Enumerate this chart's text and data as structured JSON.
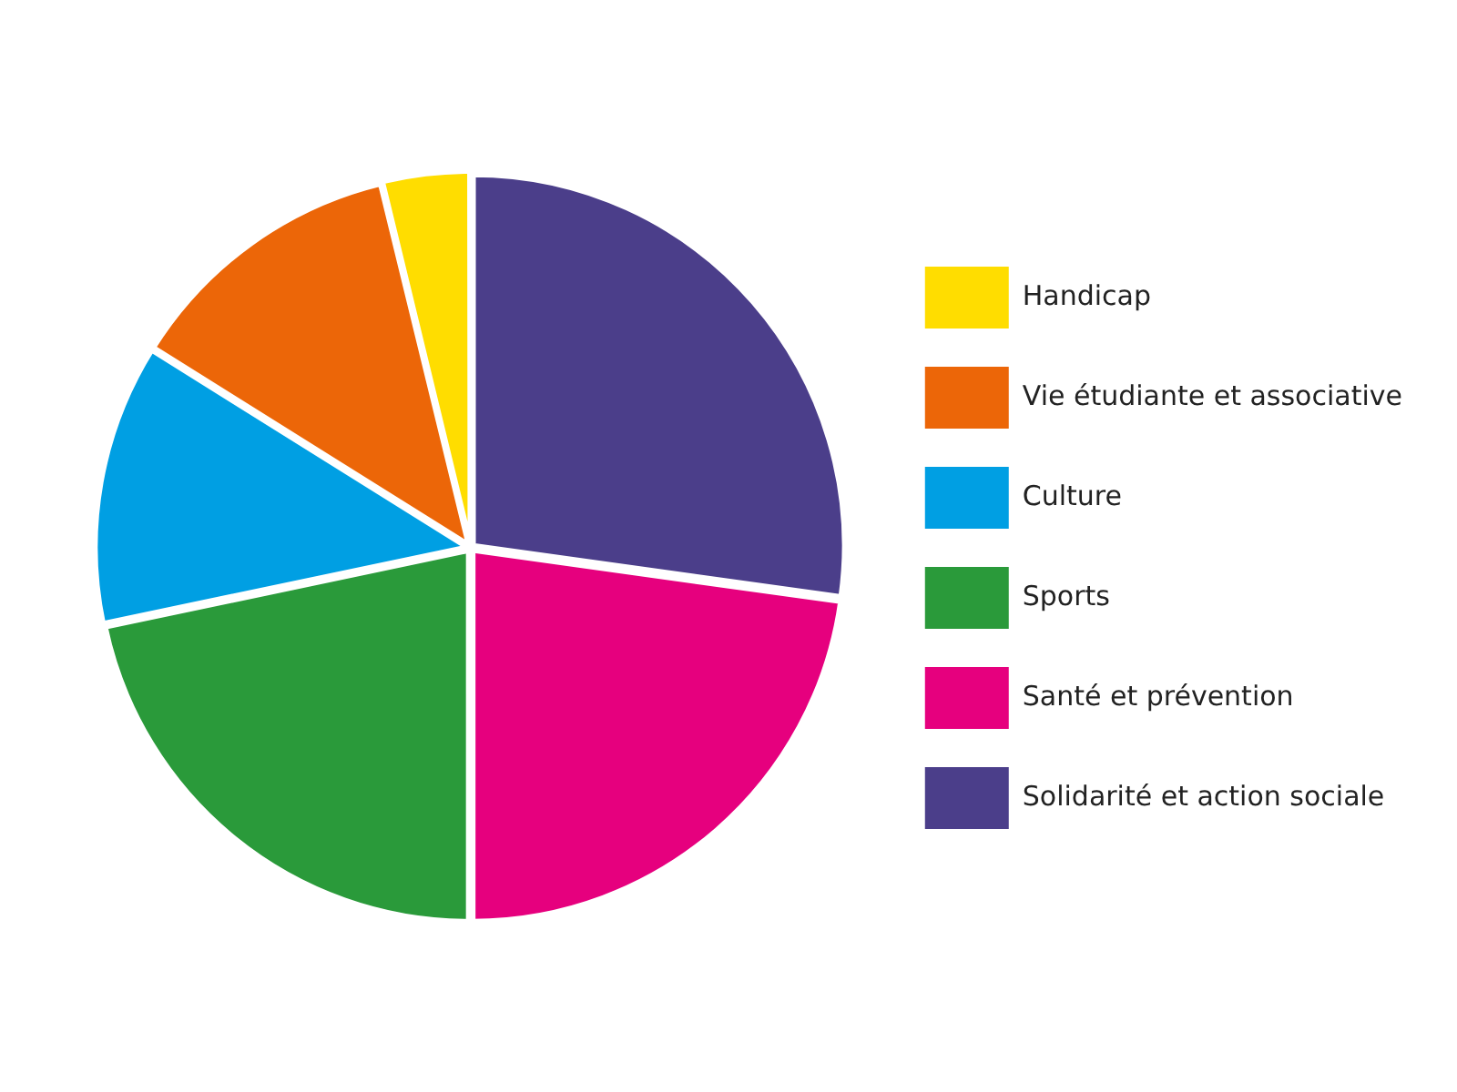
{
  "chart_data": {
    "type": "pie",
    "categories": [
      "Solidarité et action sociale",
      "Santé et prévention",
      "Sports",
      "Culture",
      "Vie étudiante et associative",
      "Handicap"
    ],
    "values": [
      27.2,
      22.8,
      21.7,
      12.2,
      12.3,
      3.8
    ],
    "colors": [
      "#4b3e8a",
      "#e6007e",
      "#2a9a3a",
      "#009fe3",
      "#ec6608",
      "#ffdd00"
    ],
    "legend": "right"
  }
}
